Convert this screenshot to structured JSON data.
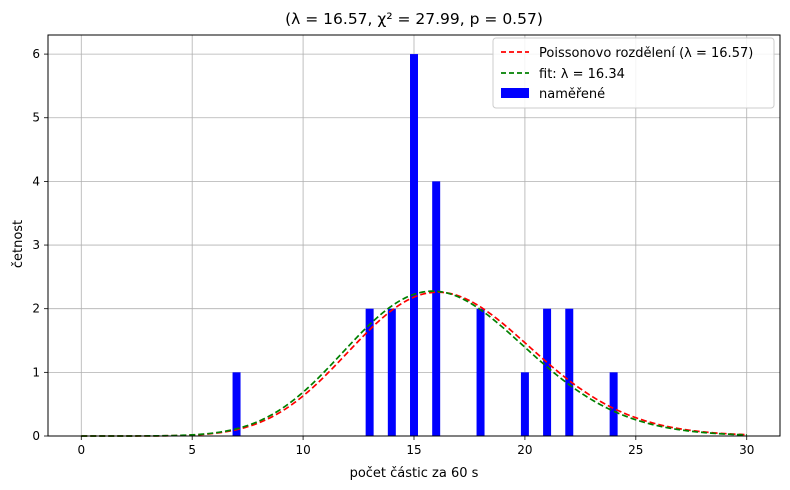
{
  "chart_data": {
    "type": "bar",
    "title": "(λ = 16.57, χ² = 27.99, p = 0.57)",
    "xlabel": "počet částic za 60 s",
    "ylabel": "četnost",
    "xlim": [
      -1.5,
      31.5
    ],
    "ylim": [
      0,
      6.3
    ],
    "xticks": [
      0,
      5,
      10,
      15,
      20,
      25,
      30
    ],
    "yticks": [
      0,
      1,
      2,
      3,
      4,
      5,
      6
    ],
    "grid": true,
    "legend_position": "top-right",
    "bars": {
      "name": "naměřené",
      "color": "#0000ff",
      "x": [
        7,
        13,
        14,
        15,
        16,
        18,
        20,
        21,
        22,
        24
      ],
      "values": [
        1,
        2,
        2,
        6,
        4,
        2,
        1,
        2,
        2,
        1
      ]
    },
    "series": [
      {
        "name": "Poissonovo rozdělení (λ = 16.57)",
        "color": "#ff0000",
        "style": "dashed",
        "lambda": 16.57,
        "total": 23
      },
      {
        "name": "fit: λ = 16.34",
        "color": "#008000",
        "style": "dashed",
        "lambda": 16.34,
        "total": 23
      }
    ],
    "curve_x_range": [
      0,
      30
    ]
  }
}
